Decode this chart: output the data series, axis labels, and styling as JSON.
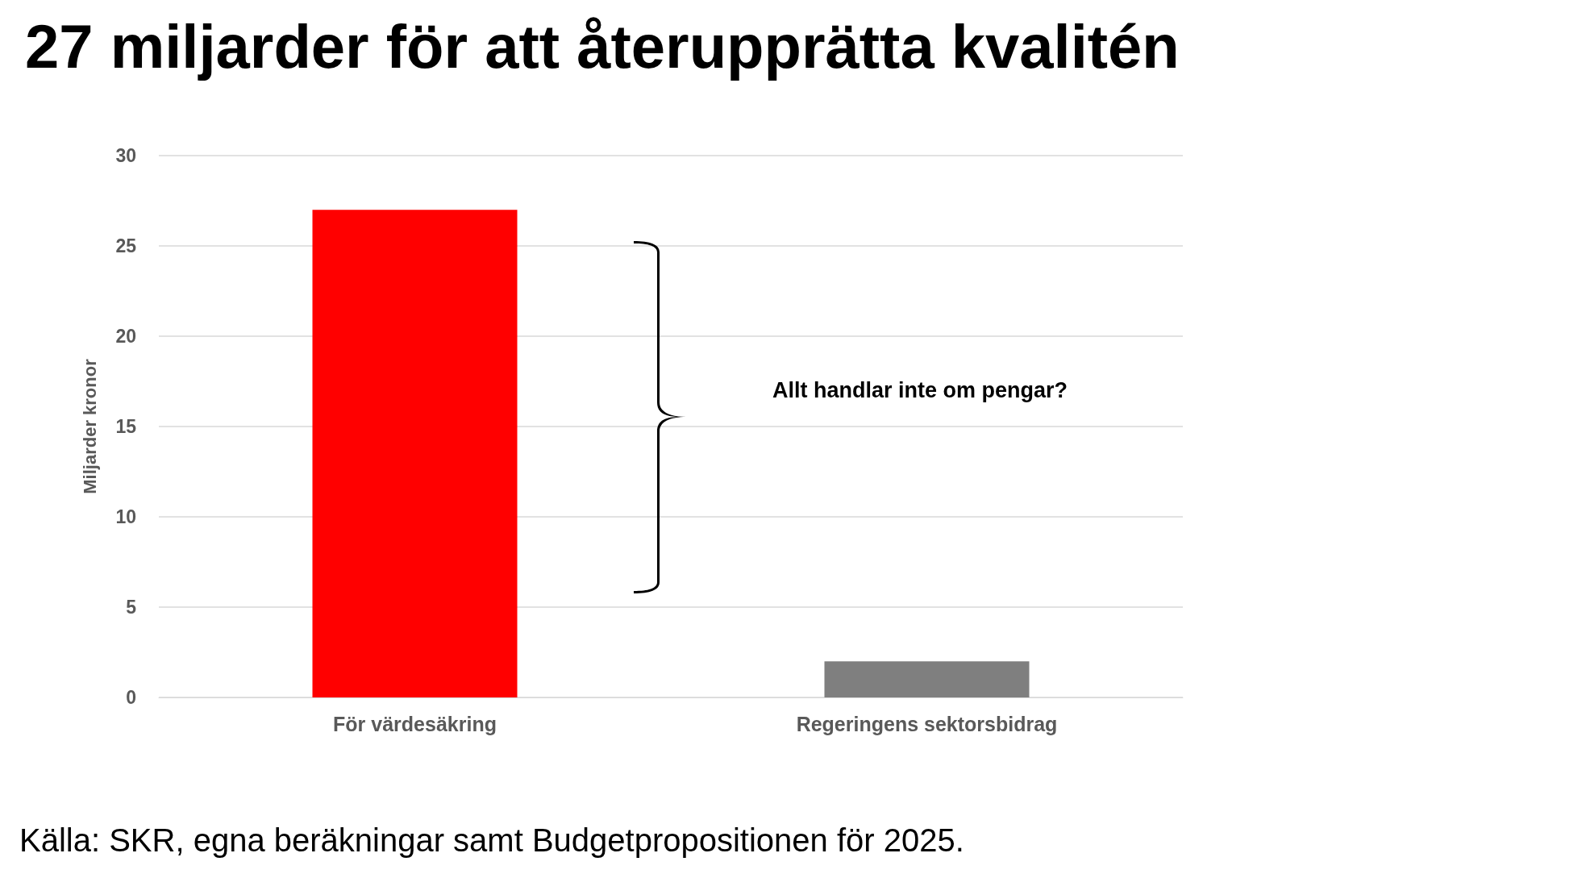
{
  "chart_data": {
    "type": "bar",
    "title": "27 miljarder för att återupprätta kvalitén",
    "ylabel": "Miljarder kronor",
    "categories": [
      "För värdesäkring",
      "Regeringens sektorsbidrag"
    ],
    "values": [
      27,
      2
    ],
    "colors": [
      "#ff0000",
      "#7f7f7f"
    ],
    "ylim": [
      0,
      30
    ],
    "yticks": [
      0,
      5,
      10,
      15,
      20,
      25,
      30
    ],
    "grid": "y",
    "annotations": [
      "Allt handlar inte om pengar?",
      "Källa: SKR, egna beräkningar samt Budgetpropositionen för 2025."
    ]
  }
}
